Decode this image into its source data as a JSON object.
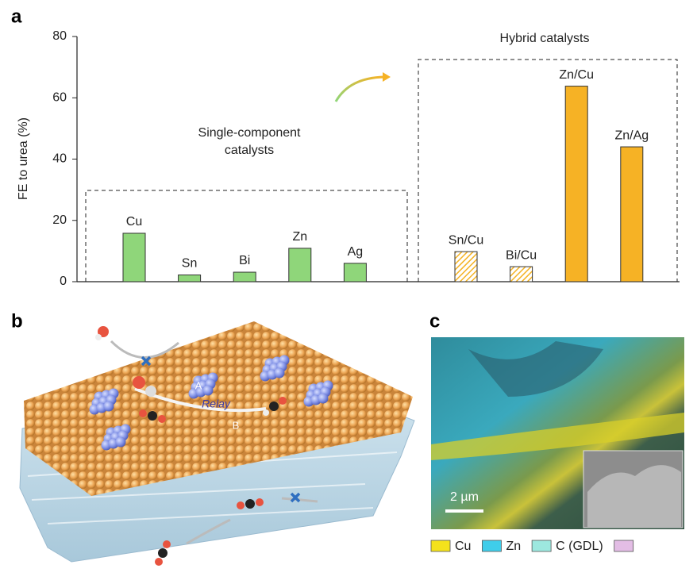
{
  "panel_labels": [
    "a",
    "b",
    "c"
  ],
  "chart_data": {
    "type": "bar",
    "y_label": "FE to urea (%)",
    "categories": [
      "Cu",
      "Sn",
      "Bi",
      "Zn",
      "Ag",
      "Sn/Cu",
      "Bi/Cu",
      "Zn/Cu",
      "Zn/Ag"
    ],
    "values": [
      15.8,
      2.2,
      3.1,
      10.9,
      6.0,
      9.8,
      4.9,
      63.8,
      44.0
    ],
    "colors": [
      "#8fd67a",
      "#8fd67a",
      "#8fd67a",
      "#8fd67a",
      "#8fd67a",
      "#f4b223",
      "#f4b223",
      "#f6b225",
      "#f6b225"
    ],
    "hatched": [
      false,
      false,
      false,
      false,
      false,
      true,
      true,
      false,
      false
    ],
    "group_labels": [
      [
        "Single-component",
        "catalysts"
      ],
      [
        "Hybrid catalysts"
      ]
    ],
    "ylim": [
      0,
      80
    ],
    "yticks": [
      0,
      20,
      40,
      60,
      80
    ],
    "grid": false
  },
  "illustration": {
    "labels": [
      "A",
      "Relay",
      "B"
    ]
  },
  "micrograph": {
    "scale_bar": "2 µm",
    "legend": [
      {
        "label": "Cu",
        "color": "#f4e21c"
      },
      {
        "label": "Zn",
        "color": "#3fcdea"
      },
      {
        "label": "C (GDL)",
        "color": "#9de8df"
      },
      {
        "color": "#e3bde5"
      }
    ]
  }
}
